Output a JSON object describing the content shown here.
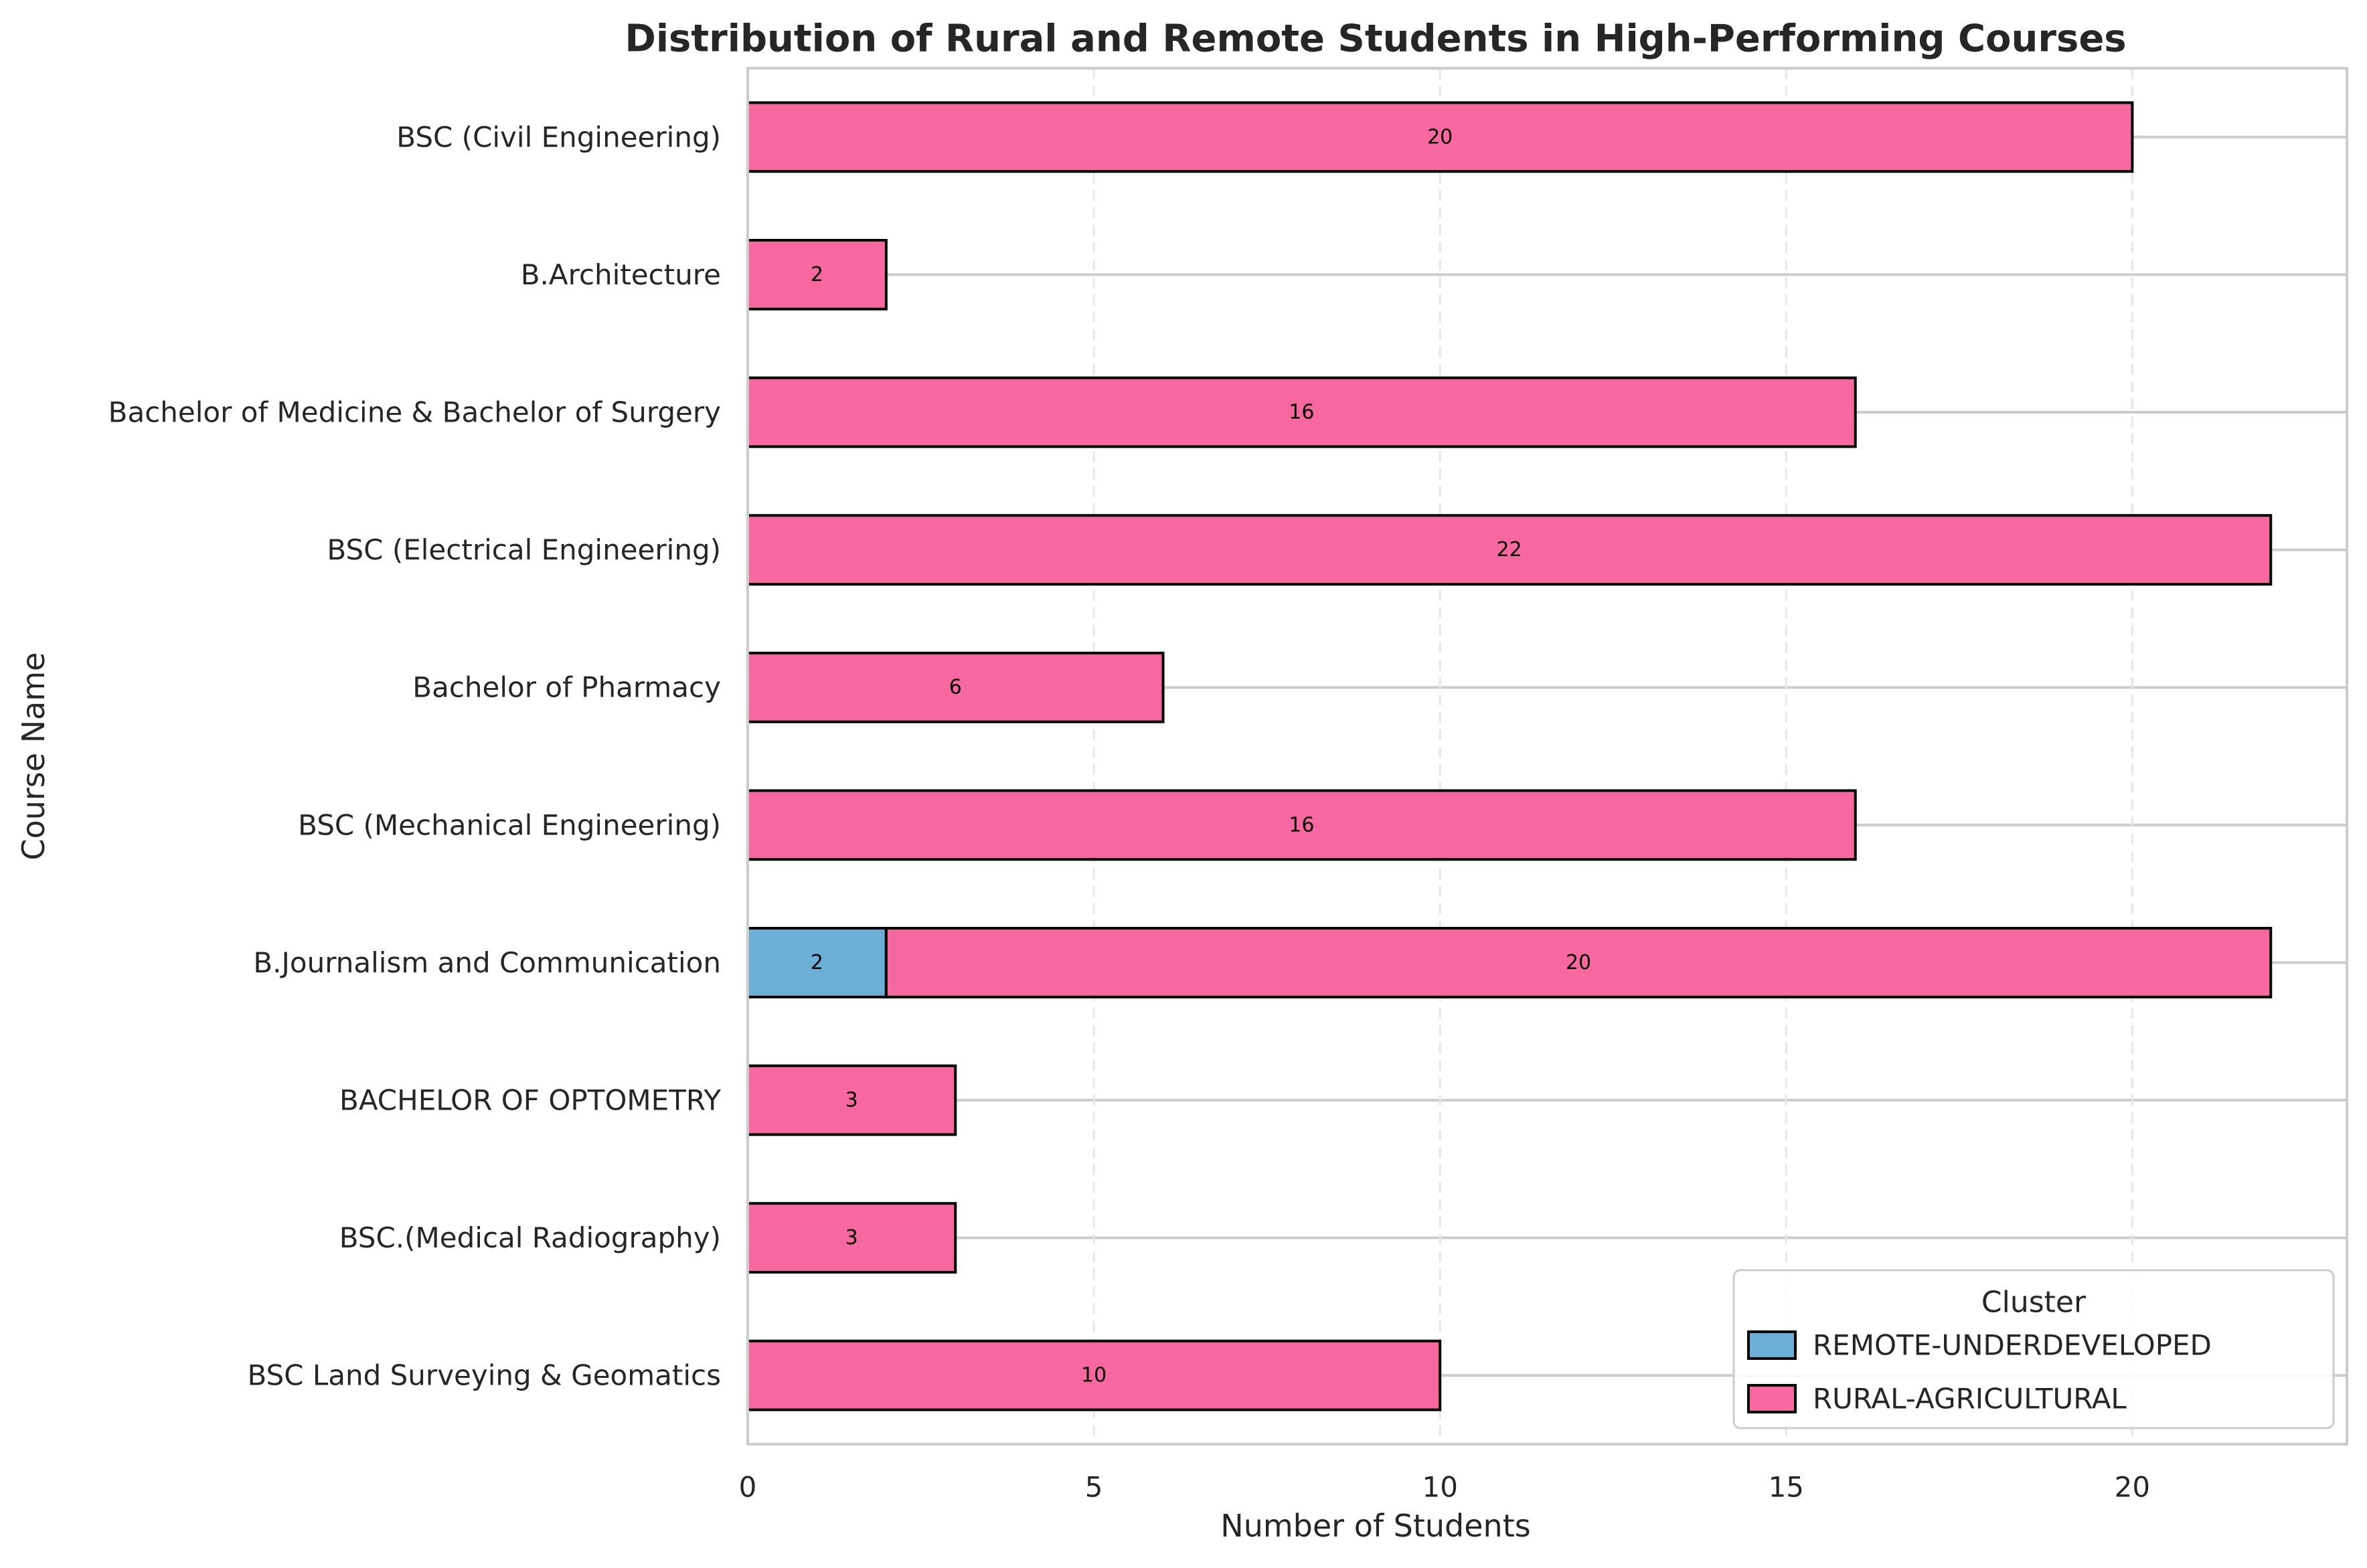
{
  "chart_data": {
    "type": "bar",
    "orientation": "horizontal",
    "stacked": true,
    "title": "Distribution of Rural and Remote Students in High-Performing Courses",
    "xlabel": "Number of Students",
    "ylabel": "Course Name",
    "xlim": [
      0,
      23.1
    ],
    "xticks": [
      0,
      5,
      10,
      15,
      20
    ],
    "grid": true,
    "legend_title": "Cluster",
    "legend_position": "lower-right",
    "categories": [
      "BSC (Civil Engineering)",
      "B.Architecture",
      "Bachelor of Medicine & Bachelor of Surgery",
      "BSC (Electrical Engineering)",
      "Bachelor of Pharmacy",
      "BSC (Mechanical Engineering)",
      "B.Journalism and Communication",
      "BACHELOR OF OPTOMETRY",
      "BSC.(Medical Radiography)",
      "BSC Land Surveying & Geomatics"
    ],
    "series": [
      {
        "name": "REMOTE-UNDERDEVELOPED",
        "color": "#6baed6",
        "values": [
          0,
          0,
          0,
          0,
          0,
          0,
          2,
          0,
          0,
          0
        ]
      },
      {
        "name": "RURAL-AGRICULTURAL",
        "color": "#f768a1",
        "values": [
          20,
          2,
          16,
          22,
          6,
          16,
          20,
          3,
          3,
          10
        ]
      }
    ]
  }
}
